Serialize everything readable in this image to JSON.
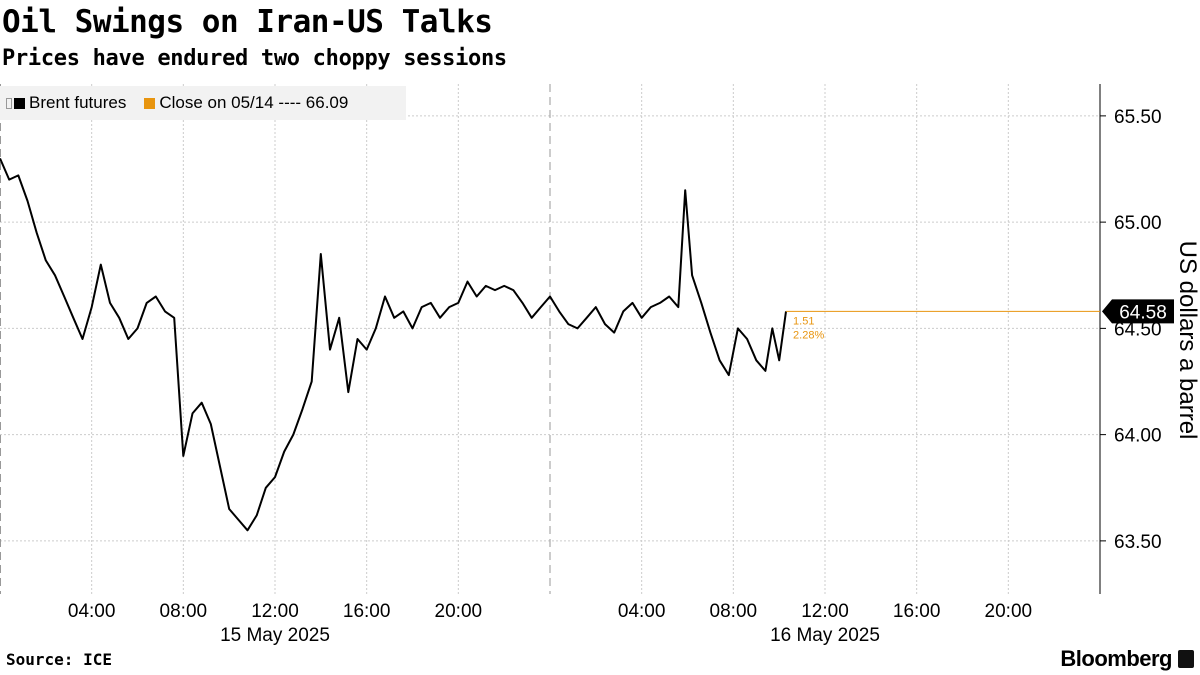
{
  "title": "Oil Swings on Iran-US Talks",
  "subtitle": "Prices have endured two choppy sessions",
  "legend": {
    "series_label": "Brent futures",
    "close_label": "Close on 05/14 ---- 66.09"
  },
  "source": "Source: ICE",
  "brand": "Bloomberg",
  "colors": {
    "series": "#000000",
    "close": "#e8950f",
    "grid": "#cccccc",
    "legend_bg": "#f2f2f2"
  },
  "chart_data": {
    "type": "line",
    "ylabel": "US dollars a barrel",
    "ylim": [
      63.25,
      65.65
    ],
    "yticks": [
      63.5,
      64.0,
      64.5,
      65.0,
      65.5
    ],
    "ytick_labels": [
      "63.50",
      "64.00",
      "64.50",
      "65.00",
      "65.50"
    ],
    "x_unit": "hours since 2025-05-15 00:00",
    "xlim": [
      0,
      48
    ],
    "xticks": [
      {
        "x": 4,
        "label": "04:00"
      },
      {
        "x": 8,
        "label": "08:00"
      },
      {
        "x": 12,
        "label": "12:00"
      },
      {
        "x": 16,
        "label": "16:00"
      },
      {
        "x": 20,
        "label": "20:00"
      },
      {
        "x": 28,
        "label": "04:00"
      },
      {
        "x": 32,
        "label": "08:00"
      },
      {
        "x": 36,
        "label": "12:00"
      },
      {
        "x": 40,
        "label": "16:00"
      },
      {
        "x": 44,
        "label": "20:00"
      }
    ],
    "date_labels": [
      {
        "x": 12,
        "label": "15 May 2025"
      },
      {
        "x": 36,
        "label": "16 May 2025"
      }
    ],
    "day_divider_x": 24,
    "last_value_label": "64.58",
    "change_abs": "1.51",
    "change_pct": "2.28%",
    "series": [
      {
        "name": "Brent futures",
        "x": [
          0.0,
          0.4,
          0.8,
          1.2,
          1.6,
          2.0,
          2.4,
          2.8,
          3.2,
          3.6,
          4.0,
          4.4,
          4.8,
          5.2,
          5.6,
          6.0,
          6.4,
          6.8,
          7.2,
          7.6,
          8.0,
          8.4,
          8.8,
          9.2,
          9.6,
          10.0,
          10.4,
          10.8,
          11.2,
          11.6,
          12.0,
          12.4,
          12.8,
          13.2,
          13.6,
          14.0,
          14.4,
          14.8,
          15.2,
          15.6,
          16.0,
          16.4,
          16.8,
          17.2,
          17.6,
          18.0,
          18.4,
          18.8,
          19.2,
          19.6,
          20.0,
          20.4,
          20.8,
          21.2,
          21.6,
          22.0,
          22.4,
          22.8,
          23.2,
          23.6,
          24.0,
          24.4,
          24.8,
          25.2,
          25.6,
          26.0,
          26.4,
          26.8,
          27.2,
          27.6,
          28.0,
          28.4,
          28.8,
          29.2,
          29.6,
          29.9,
          30.2,
          30.6,
          31.0,
          31.4,
          31.8,
          32.2,
          32.6,
          33.0,
          33.4,
          33.7,
          34.0,
          34.3
        ],
        "values": [
          65.3,
          65.2,
          65.22,
          65.1,
          64.95,
          64.82,
          64.75,
          64.65,
          64.55,
          64.45,
          64.6,
          64.8,
          64.62,
          64.55,
          64.45,
          64.5,
          64.62,
          64.65,
          64.58,
          64.55,
          63.9,
          64.1,
          64.15,
          64.05,
          63.85,
          63.65,
          63.6,
          63.55,
          63.62,
          63.75,
          63.8,
          63.92,
          64.0,
          64.12,
          64.25,
          64.85,
          64.4,
          64.55,
          64.2,
          64.45,
          64.4,
          64.5,
          64.65,
          64.55,
          64.58,
          64.5,
          64.6,
          64.62,
          64.55,
          64.6,
          64.62,
          64.72,
          64.65,
          64.7,
          64.68,
          64.7,
          64.68,
          64.62,
          64.55,
          64.6,
          64.65,
          64.58,
          64.52,
          64.5,
          64.55,
          64.6,
          64.52,
          64.48,
          64.58,
          64.62,
          64.55,
          64.6,
          64.62,
          64.65,
          64.6,
          65.15,
          64.75,
          64.62,
          64.48,
          64.35,
          64.28,
          64.5,
          64.45,
          64.35,
          64.3,
          64.5,
          64.35,
          64.58
        ]
      }
    ],
    "reference_line": {
      "name": "Close on 05/14",
      "value": 66.09
    }
  }
}
